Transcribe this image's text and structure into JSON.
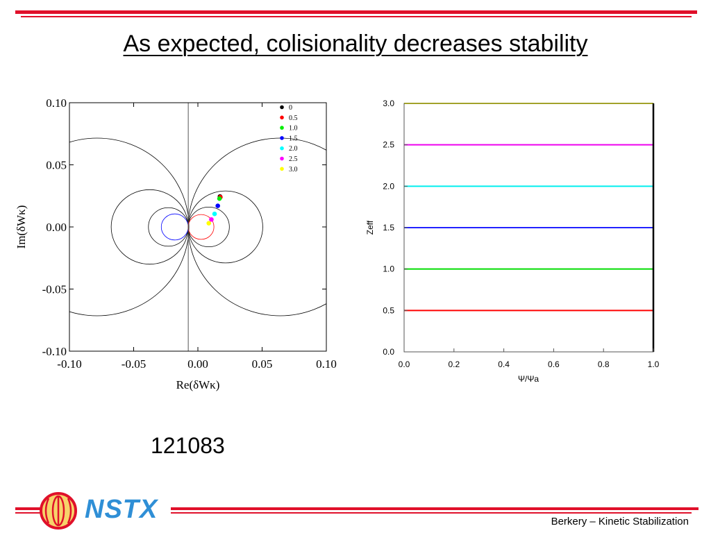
{
  "slide": {
    "title": "As expected, colisionality decreases stability",
    "shot_number": "121083",
    "footer": "Berkery – Kinetic Stabilization",
    "logo_text": "NSTX",
    "colors": {
      "rule": "#e0102a",
      "logo_blue": "#2f8fd6",
      "logo_gold": "#f7d26a"
    }
  },
  "chart_data": [
    {
      "type": "scatter",
      "xlabel": "Re(δWκ)",
      "ylabel": "Im(δWκ)",
      "xlim": [
        -0.1,
        0.1
      ],
      "ylim": [
        -0.1,
        0.1
      ],
      "x_ticks": [
        "-0.10",
        "-0.05",
        "0.00",
        "0.05",
        "0.10"
      ],
      "y_ticks": [
        "-0.10",
        "-0.05",
        "0.00",
        "0.05",
        "0.10"
      ],
      "legend_position": "top-right",
      "series": [
        {
          "name": "0",
          "color": "#000000",
          "x": 0.0172,
          "y": 0.0245
        },
        {
          "name": "0.5",
          "color": "#ff0000",
          "x": 0.0175,
          "y": 0.024
        },
        {
          "name": "1.0",
          "color": "#00ee00",
          "x": 0.0168,
          "y": 0.0228
        },
        {
          "name": "1.5",
          "color": "#0000ff",
          "x": 0.0155,
          "y": 0.017
        },
        {
          "name": "2.0",
          "color": "#00ffff",
          "x": 0.013,
          "y": 0.0105
        },
        {
          "name": "2.5",
          "color": "#ff00ff",
          "x": 0.0105,
          "y": 0.006
        },
        {
          "name": "3.0",
          "color": "#ffff00",
          "x": 0.0085,
          "y": 0.003
        }
      ],
      "reference_x": -0.0075,
      "stability_circles": [
        {
          "center": [
            -0.0785,
            0.0
          ],
          "radius": 0.0715,
          "color": "#000000",
          "arcs": true
        },
        {
          "center": [
            -0.0375,
            0.0
          ],
          "radius": 0.03,
          "color": "#000000"
        },
        {
          "center": [
            -0.023,
            0.0
          ],
          "radius": 0.0155,
          "color": "#000000"
        },
        {
          "center": [
            -0.018,
            0.0
          ],
          "radius": 0.0105,
          "color": "#0000ff"
        },
        {
          "center": [
            0.064,
            0.0
          ],
          "radius": 0.0715,
          "color": "#000000",
          "arcs": true
        },
        {
          "center": [
            0.0215,
            0.0
          ],
          "radius": 0.029,
          "color": "#000000"
        },
        {
          "center": [
            0.0085,
            0.0
          ],
          "radius": 0.016,
          "color": "#000000"
        },
        {
          "center": [
            0.0025,
            0.0
          ],
          "radius": 0.01,
          "color": "#ff0000"
        }
      ]
    },
    {
      "type": "line",
      "xlabel": "Ψ/Ψa",
      "ylabel": "Zeff",
      "xlim": [
        0.0,
        1.0
      ],
      "ylim": [
        0.0,
        3.0
      ],
      "x_ticks": [
        "0.0",
        "0.2",
        "0.4",
        "0.6",
        "0.8",
        "1.0"
      ],
      "y_ticks": [
        "0.0",
        "0.5",
        "1.0",
        "1.5",
        "2.0",
        "2.5",
        "3.0"
      ],
      "series": [
        {
          "color": "#ff0000",
          "x": [
            0.0,
            1.0
          ],
          "y": [
            0.5,
            0.5
          ]
        },
        {
          "color": "#00dd00",
          "x": [
            0.0,
            1.0
          ],
          "y": [
            1.0,
            1.0
          ]
        },
        {
          "color": "#2222ff",
          "x": [
            0.0,
            1.0
          ],
          "y": [
            1.5,
            1.5
          ]
        },
        {
          "color": "#00eeee",
          "x": [
            0.0,
            1.0
          ],
          "y": [
            2.0,
            2.0
          ]
        },
        {
          "color": "#ee00ee",
          "x": [
            0.0,
            1.0
          ],
          "y": [
            2.5,
            2.5
          ]
        },
        {
          "color": "#eeee00",
          "x": [
            0.0,
            1.0
          ],
          "y": [
            3.0,
            3.0
          ]
        }
      ]
    }
  ]
}
